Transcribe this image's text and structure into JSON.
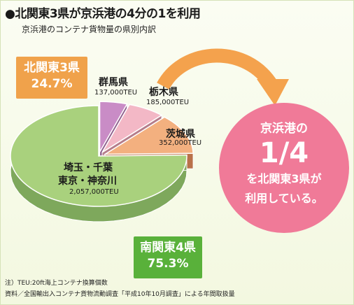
{
  "header": {
    "title": "●北関東3県が京浜港の4分の1を利用",
    "subtitle": "京浜港のコンテナ貨物量の県別内訳"
  },
  "chart_data": {
    "type": "pie",
    "title": "京浜港のコンテナ貨物量の県別内訳",
    "unit": "TEU",
    "slices": [
      {
        "label": "群馬県",
        "value": 137000,
        "value_label": "137,000TEU",
        "color": "#c98cc6",
        "side_color": "#8f5f8d"
      },
      {
        "label": "栃木県",
        "value": 185000,
        "value_label": "185,000TEU",
        "color": "#f3b8c6",
        "side_color": "#b57d8b"
      },
      {
        "label": "茨城県",
        "value": 352000,
        "value_label": "352,000TEU",
        "color": "#f3b07f",
        "side_color": "#b9714a"
      },
      {
        "label": "埼玉・千葉\n東京・神奈川",
        "value": 2057000,
        "value_label": "2,057,000TEU",
        "color": "#a9d17d",
        "side_color": "#7ea85c"
      }
    ],
    "groups": [
      {
        "label": "北関東3県",
        "share": "24.7%",
        "color": "#f0a24b"
      },
      {
        "label": "南関東4県",
        "share": "75.3%",
        "color": "#59b13a"
      }
    ]
  },
  "labels": {
    "gunma": {
      "name": "群馬県",
      "value": "137,000TEU"
    },
    "tochigi": {
      "name": "栃木県",
      "value": "185,000TEU"
    },
    "ibaraki": {
      "name": "茨城県",
      "value": "352,000TEU"
    },
    "south": {
      "name1": "埼玉・千葉",
      "name2": "東京・神奈川",
      "value": "2,057,000TEU"
    }
  },
  "badges": {
    "north": {
      "name": "北関東3県",
      "share": "24.7%",
      "color": "#f0a24b"
    },
    "south": {
      "name": "南関東4県",
      "share": "75.3%",
      "color": "#59b13a"
    }
  },
  "callout": {
    "line1": "京浜港の",
    "fraction": "1/4",
    "line3": "を北関東3県が",
    "line4": "利用している。",
    "color": "#f07a98",
    "arrow_color": "#f4a24d"
  },
  "notes": {
    "note1": "注）TEU:20ft海上コンテナ換算個数",
    "note2": "資料／全国輸出入コンテナ貨物流動調査「平成10年10月調査」による年間取扱量"
  }
}
